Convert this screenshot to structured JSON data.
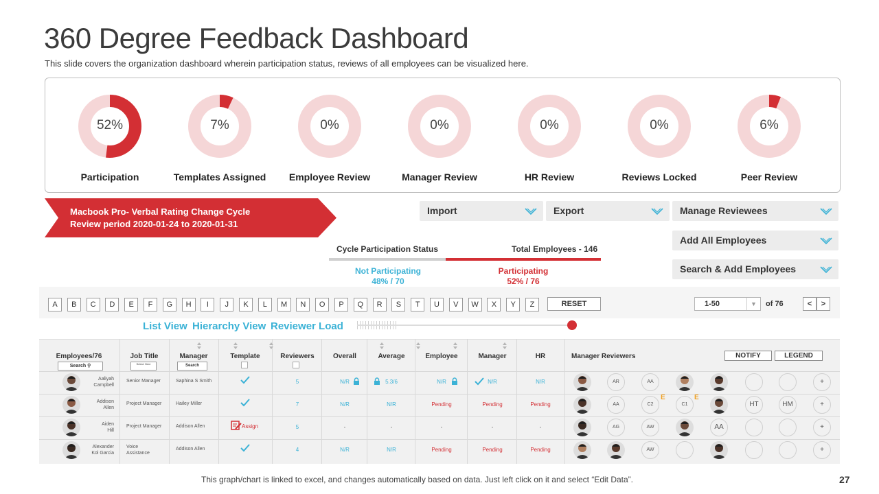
{
  "title": "360 Degree Feedback Dashboard",
  "subtitle": "This slide covers the organization dashboard wherein participation status, reviews of all employees can be visualized here.",
  "colors": {
    "accent": "#d32f34",
    "ring_bg": "#f5d6d7",
    "link": "#3bb2d6"
  },
  "kpis": [
    {
      "label": "Participation",
      "pct_text": "52%",
      "value": 0.52
    },
    {
      "label": "Templates Assigned",
      "pct_text": "7%",
      "value": 0.07
    },
    {
      "label": "Employee Review",
      "pct_text": "0%",
      "value": 0
    },
    {
      "label": "Manager Review",
      "pct_text": "0%",
      "value": 0
    },
    {
      "label": "HR Review",
      "pct_text": "0%",
      "value": 0
    },
    {
      "label": "Reviews Locked",
      "pct_text": "0%",
      "value": 0
    },
    {
      "label": "Peer Review",
      "pct_text": "6%",
      "value": 0.06
    }
  ],
  "banner": {
    "line1": "Macbook Pro- Verbal Rating Change Cycle",
    "line2": "Review period 2020-01-24 to 2020-01-31"
  },
  "dropdowns": {
    "import": "Import",
    "export": "Export",
    "manage_reviewees": "Manage Reviewees",
    "add_all": "Add All Employees",
    "search_add": "Search & Add Employees"
  },
  "cycle": {
    "status_label": "Cycle Participation Status",
    "total_label": "Total Employees - 146",
    "not_participating_label": "Not Participating",
    "not_participating_value": "48% / 70",
    "participating_label": "Participating",
    "participating_value": "52% / 76",
    "participating_fraction": 0.52
  },
  "alphabet": [
    "A",
    "B",
    "C",
    "D",
    "E",
    "F",
    "G",
    "H",
    "I",
    "J",
    "K",
    "L",
    "M",
    "N",
    "O",
    "P",
    "Q",
    "R",
    "S",
    "T",
    "U",
    "V",
    "W",
    "X",
    "Y",
    "Z"
  ],
  "reset_label": "RESET",
  "pagination": {
    "range": "1-50",
    "of_total": "of 76",
    "prev": "<",
    "next": ">"
  },
  "views": {
    "list": "List View",
    "hierarchy": "Hierarchy View",
    "reviewer_load": "Reviewer Load"
  },
  "table": {
    "headers": {
      "employees": "Employees/76",
      "job_title": "Job Title",
      "manager": "Manager",
      "template": "Template",
      "reviewers": "Reviewers",
      "overall": "Overall",
      "average": "Average",
      "employee": "Employee",
      "manager_col": "Manager",
      "hr": "HR",
      "manager_reviewers": "Manager Reviewers"
    },
    "search_placeholder": "Search",
    "select_placeholder": "Select Here",
    "manager_search": "Search",
    "notify": "NOTIFY",
    "legend": "LEGEND",
    "rows": [
      {
        "name_line1": "Aaliyah",
        "name_line2": "Campbell",
        "job": "Senior Manager",
        "job_line2": "",
        "manager": "Saphina S Smith",
        "template": "check",
        "reviewers": "5",
        "overall": "N/R",
        "average": "5.3/6",
        "employee": "N/R",
        "manager_review": "N/R",
        "hr": "N/R",
        "reviewer_chips": [
          "",
          "AR",
          "AA",
          "",
          "",
          "",
          "",
          "+"
        ]
      },
      {
        "name_line1": "Addison",
        "name_line2": "Allen",
        "job": "Project Manager",
        "job_line2": "",
        "manager": "Hailey Miller",
        "template": "check",
        "reviewers": "7",
        "overall": "N/R",
        "average": "N/R",
        "employee": "Pending",
        "manager_review": "Pending",
        "hr": "Pending",
        "reviewer_chips": [
          "",
          "AA",
          "C2",
          "C1",
          "",
          "HT",
          "HM",
          "+"
        ],
        "e_mark": "E"
      },
      {
        "name_line1": "Aiden",
        "name_line2": "Hill",
        "job": "Project Manager",
        "job_line2": "",
        "manager": "Addison Allen",
        "template": "assign",
        "template_label": "Assign",
        "reviewers": "5",
        "overall": "-",
        "average": "-",
        "employee": "-",
        "manager_review": "-",
        "hr": "-",
        "reviewer_chips": [
          "",
          "AG",
          "AW",
          "",
          "AA",
          "",
          "",
          "+"
        ]
      },
      {
        "name_line1": "Alexander",
        "name_line2": "Kol Garcia",
        "job": "Voice",
        "job_line2": "Assistance",
        "manager": "Addison Allen",
        "template": "check",
        "reviewers": "4",
        "overall": "N/R",
        "average": "N/R",
        "employee": "Pending",
        "manager_review": "Pending",
        "hr": "Pending",
        "reviewer_chips": [
          "",
          "",
          "AW",
          "",
          "",
          "",
          "",
          "+"
        ]
      }
    ]
  },
  "footer": "This graph/chart is linked to excel, and changes automatically based on data. Just left click on it and select “Edit Data”.",
  "page_number": "27"
}
